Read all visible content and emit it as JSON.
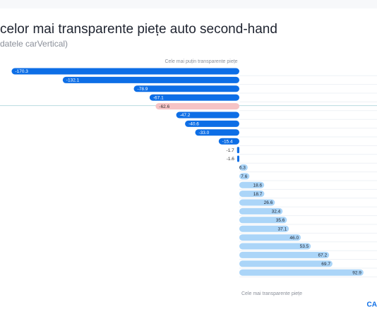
{
  "chart_data": {
    "type": "bar",
    "orientation": "horizontal",
    "title": "celor mai transparente piețe auto second-hand",
    "subtitle": "datele carVertical)",
    "annotations": [
      "Cele mai puțin transparente piețe",
      "Cele mai transparente piețe"
    ],
    "logo": "CA",
    "values": [
      -170.3,
      -132.1,
      -78.9,
      -67.1,
      -62.6,
      -47.2,
      -40.6,
      -33.0,
      -15.4,
      -1.7,
      -1.6,
      6.3,
      7.6,
      18.6,
      18.7,
      26.6,
      32.4,
      35.6,
      37.1,
      46.0,
      53.5,
      67.2,
      69.7,
      92.9
    ],
    "value_labels": [
      "-170.3",
      "-132.1",
      "-78.9",
      "-67.1",
      "-62.6",
      "-47.2",
      "-40.6",
      "-33.0",
      "-15.4",
      "-1.7",
      "-1.6",
      "6.3",
      "7.6",
      "18.6",
      "18.7",
      "26.6",
      "32.4",
      "35.6",
      "37.1",
      "46.0",
      "53.5",
      "67.2",
      "69.7",
      "92.9"
    ],
    "colors": [
      "#0d6ee6",
      "#0d6ee6",
      "#0d6ee6",
      "#0d6ee6",
      "#f6c3c5",
      "#0d6ee6",
      "#0d6ee6",
      "#0d6ee6",
      "#0d6ee6",
      "#0d6ee6",
      "#0d6ee6",
      "#abd5f8",
      "#abd5f8",
      "#abd5f8",
      "#abd5f8",
      "#abd5f8",
      "#abd5f8",
      "#abd5f8",
      "#abd5f8",
      "#abd5f8",
      "#abd5f8",
      "#abd5f8",
      "#abd5f8",
      "#abd5f8"
    ],
    "xlim": [
      -179,
      103
    ]
  }
}
